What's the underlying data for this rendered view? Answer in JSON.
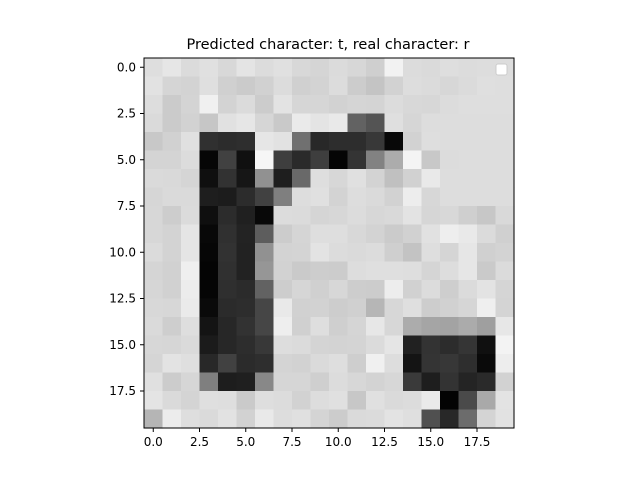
{
  "chart_data": {
    "type": "heatmap",
    "title": "Predicted character: t, real character: r",
    "xlabel": "",
    "ylabel": "",
    "colormap": "gray",
    "rows": 20,
    "cols": 20,
    "x_ticks": [
      "0.0",
      "2.5",
      "5.0",
      "7.5",
      "10.0",
      "12.5",
      "15.0",
      "17.5"
    ],
    "y_ticks": [
      "0.0",
      "2.5",
      "5.0",
      "7.5",
      "10.0",
      "12.5",
      "15.0",
      "17.5"
    ],
    "tick_values": [
      0,
      2.5,
      5,
      7.5,
      10,
      12.5,
      15,
      17.5
    ],
    "extent": [
      -0.5,
      19.5,
      19.5,
      -0.5
    ],
    "legend": {
      "position": "top-right",
      "entries": []
    },
    "pixels": [
      [
        222,
        230,
        219,
        224,
        216,
        228,
        220,
        224,
        216,
        213,
        219,
        215,
        207,
        242,
        220,
        218,
        222,
        220,
        221,
        221
      ],
      [
        226,
        213,
        211,
        223,
        208,
        203,
        209,
        220,
        208,
        211,
        220,
        204,
        196,
        210,
        221,
        219,
        215,
        219,
        223,
        222
      ],
      [
        221,
        203,
        212,
        240,
        211,
        219,
        204,
        227,
        214,
        214,
        210,
        213,
        212,
        220,
        216,
        215,
        220,
        222,
        222,
        222
      ],
      [
        218,
        203,
        210,
        198,
        225,
        230,
        214,
        201,
        234,
        228,
        233,
        98,
        84,
        223,
        214,
        221,
        221,
        221,
        221,
        221
      ],
      [
        200,
        209,
        224,
        48,
        44,
        46,
        230,
        226,
        112,
        40,
        45,
        45,
        56,
        8,
        210,
        222,
        221,
        221,
        221,
        221
      ],
      [
        212,
        212,
        220,
        6,
        65,
        16,
        246,
        62,
        42,
        62,
        5,
        52,
        130,
        172,
        244,
        200,
        220,
        221,
        221,
        221
      ],
      [
        218,
        217,
        213,
        15,
        50,
        22,
        145,
        30,
        105,
        222,
        215,
        224,
        211,
        192,
        209,
        233,
        221,
        221,
        221,
        221
      ],
      [
        214,
        218,
        218,
        30,
        28,
        44,
        65,
        127,
        221,
        224,
        211,
        221,
        218,
        210,
        237,
        215,
        221,
        221,
        221,
        221
      ],
      [
        215,
        205,
        219,
        15,
        44,
        32,
        8,
        220,
        219,
        213,
        215,
        220,
        215,
        217,
        227,
        214,
        216,
        207,
        199,
        217
      ],
      [
        215,
        211,
        229,
        8,
        48,
        35,
        93,
        204,
        213,
        222,
        222,
        216,
        211,
        203,
        209,
        225,
        238,
        233,
        219,
        208
      ],
      [
        219,
        211,
        229,
        6,
        50,
        34,
        145,
        211,
        212,
        227,
        220,
        218,
        220,
        207,
        195,
        222,
        213,
        230,
        208,
        211
      ],
      [
        213,
        209,
        239,
        4,
        48,
        34,
        150,
        210,
        202,
        205,
        204,
        221,
        223,
        223,
        222,
        213,
        221,
        230,
        202,
        219
      ],
      [
        214,
        209,
        236,
        5,
        47,
        43,
        98,
        205,
        214,
        208,
        215,
        205,
        204,
        237,
        209,
        220,
        206,
        219,
        227,
        213
      ],
      [
        216,
        215,
        234,
        10,
        43,
        45,
        70,
        233,
        209,
        210,
        205,
        208,
        182,
        215,
        223,
        205,
        209,
        214,
        239,
        212
      ],
      [
        218,
        206,
        222,
        20,
        39,
        50,
        70,
        238,
        208,
        222,
        207,
        213,
        231,
        215,
        172,
        165,
        163,
        171,
        159,
        231
      ],
      [
        215,
        214,
        218,
        27,
        39,
        45,
        56,
        221,
        219,
        212,
        211,
        212,
        219,
        229,
        33,
        51,
        44,
        53,
        16,
        243
      ],
      [
        213,
        227,
        223,
        40,
        65,
        43,
        46,
        212,
        210,
        218,
        222,
        206,
        240,
        221,
        20,
        52,
        55,
        46,
        10,
        237
      ],
      [
        224,
        204,
        214,
        127,
        29,
        31,
        136,
        214,
        214,
        207,
        220,
        215,
        211,
        215,
        58,
        30,
        51,
        36,
        42,
        210
      ],
      [
        228,
        218,
        212,
        223,
        222,
        202,
        222,
        220,
        210,
        221,
        224,
        199,
        224,
        218,
        220,
        234,
        3,
        74,
        169,
        227
      ],
      [
        181,
        236,
        222,
        218,
        226,
        210,
        233,
        221,
        224,
        212,
        204,
        218,
        219,
        227,
        223,
        80,
        40,
        108,
        212,
        226
      ]
    ]
  }
}
